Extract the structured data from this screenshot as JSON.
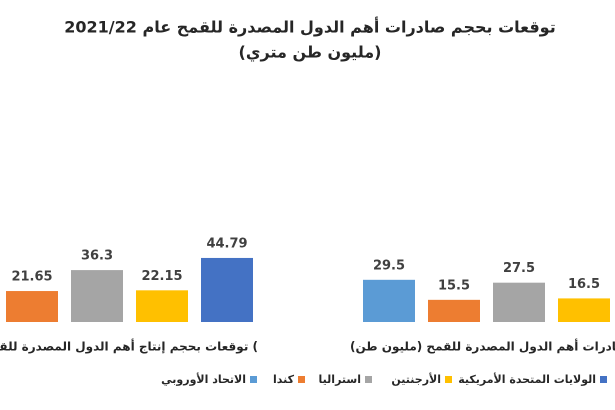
{
  "chart_data": {
    "type": "bar",
    "title": "توقعات بحجم صادرات أهم الدول المصدرة للقمح عام 2021/22",
    "subtitle": "(مليون طن متري)",
    "categories": [
      "توقعات بحجم إنتاج أهم الدول المصدرة للقمح (",
      "صادرات أهم الدول المصدرة للقمح (مليون طن)"
    ],
    "series": [
      {
        "name": "الولايات المتحدة الأمريكية",
        "color": "#4472c4",
        "values": [
          44.79,
          null
        ]
      },
      {
        "name": "الأرجنتين",
        "color": "#ffc000",
        "values": [
          22.15,
          16.5
        ]
      },
      {
        "name": "استراليا",
        "color": "#a5a5a5",
        "values": [
          36.3,
          27.5
        ]
      },
      {
        "name": "كندا",
        "color": "#ed7d31",
        "values": [
          21.65,
          15.5
        ]
      },
      {
        "name": "الاتحاد الأوروبي",
        "color": "#5b9bd5",
        "values": [
          null,
          29.5
        ]
      }
    ]
  }
}
